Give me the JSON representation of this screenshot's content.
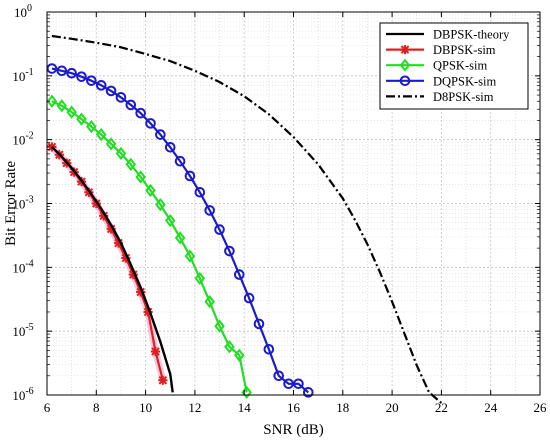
{
  "chart_data": {
    "type": "line",
    "xlabel": "SNR (dB)",
    "ylabel": "Bit Error Rate",
    "xlim": [
      6,
      26
    ],
    "ylim": [
      1e-06,
      1
    ],
    "y_scale": "log",
    "grid": true,
    "minor_grid": true,
    "legend_position": "top-right",
    "x_ticks": [
      6,
      8,
      10,
      12,
      14,
      16,
      18,
      20,
      22,
      24,
      26
    ],
    "y_ticks": [
      {
        "value": 1,
        "base": "10",
        "exp": "0"
      },
      {
        "value": 0.1,
        "base": "10",
        "exp": "-1"
      },
      {
        "value": 0.01,
        "base": "10",
        "exp": "-2"
      },
      {
        "value": 0.001,
        "base": "10",
        "exp": "-3"
      },
      {
        "value": 0.0001,
        "base": "10",
        "exp": "-4"
      },
      {
        "value": 1e-05,
        "base": "10",
        "exp": "-5"
      },
      {
        "value": 1e-06,
        "base": "10",
        "exp": "-6"
      }
    ],
    "series": [
      {
        "name": "DBPSK-theory",
        "color": "#000000",
        "style": "solid",
        "marker": "none",
        "x": [
          6.2,
          6.6,
          7.0,
          7.4,
          7.8,
          8.2,
          8.6,
          9.0,
          9.4,
          9.8,
          10.2,
          10.6,
          11.0,
          11.1
        ],
        "y": [
          0.0077,
          0.0054,
          0.0036,
          0.0023,
          0.0014,
          0.00083,
          0.00046,
          0.00024,
          0.00011,
          4.8e-05,
          1.9e-05,
          6.8e-06,
          2.1e-06,
          1.1e-06
        ]
      },
      {
        "name": "DBPSK-sim",
        "color": "#e02020",
        "style": "solid",
        "marker": "asterisk",
        "x": [
          6.2,
          6.5,
          6.8,
          7.1,
          7.4,
          7.7,
          8.0,
          8.3,
          8.6,
          8.9,
          9.2,
          9.5,
          9.8,
          10.1,
          10.4,
          10.7
        ],
        "y": [
          0.0077,
          0.0058,
          0.0043,
          0.0031,
          0.0022,
          0.0015,
          0.001,
          0.00064,
          0.0004,
          0.00024,
          0.00014,
          7.7e-05,
          4.1e-05,
          2e-05,
          4.8e-06,
          1.7e-06
        ]
      },
      {
        "name": "QPSK-sim",
        "color": "#22dd22",
        "style": "solid",
        "marker": "diamond",
        "x": [
          6.2,
          6.6,
          7.0,
          7.4,
          7.8,
          8.2,
          8.6,
          9.0,
          9.4,
          9.8,
          10.2,
          10.6,
          11.0,
          11.4,
          11.8,
          12.2,
          12.6,
          13.0,
          13.4,
          13.8,
          14.1
        ],
        "y": [
          0.04,
          0.034,
          0.027,
          0.021,
          0.016,
          0.012,
          0.0086,
          0.0061,
          0.0041,
          0.0026,
          0.0016,
          0.00096,
          0.00054,
          0.00029,
          0.00015,
          6.7e-05,
          2.9e-05,
          1.2e-05,
          5.7e-06,
          4.2e-06,
          1.1e-06
        ]
      },
      {
        "name": "DQPSK-sim",
        "color": "#1b1bcc",
        "style": "solid",
        "marker": "circle",
        "x": [
          6.2,
          6.6,
          7.0,
          7.4,
          7.8,
          8.2,
          8.6,
          9.0,
          9.4,
          9.8,
          10.2,
          10.6,
          11.0,
          11.4,
          11.8,
          12.2,
          12.6,
          13.0,
          13.4,
          13.8,
          14.2,
          14.6,
          15.0,
          15.4,
          15.8,
          16.2,
          16.6
        ],
        "y": [
          0.13,
          0.12,
          0.11,
          0.097,
          0.084,
          0.071,
          0.058,
          0.046,
          0.035,
          0.026,
          0.018,
          0.012,
          0.0076,
          0.0046,
          0.0027,
          0.0015,
          0.00078,
          0.00039,
          0.00018,
          7.7e-05,
          3.3e-05,
          1.3e-05,
          5.2e-06,
          2e-06,
          1.5e-06,
          1.5e-06,
          1.1e-06
        ]
      },
      {
        "name": "D8PSK-sim",
        "color": "#000000",
        "style": "dashdot",
        "marker": "none",
        "x": [
          6.2,
          7,
          8,
          9,
          10,
          11,
          12,
          13,
          14,
          15,
          16,
          17,
          18,
          18.5,
          19,
          19.5,
          20,
          20.5,
          21,
          21.5,
          22
        ],
        "y": [
          0.42,
          0.38,
          0.33,
          0.28,
          0.22,
          0.17,
          0.12,
          0.08,
          0.048,
          0.025,
          0.011,
          0.0041,
          0.0012,
          0.00055,
          0.00023,
          8.5e-05,
          2.9e-05,
          9.2e-06,
          2.9e-06,
          1.1e-06,
          7.5e-07
        ]
      }
    ]
  }
}
